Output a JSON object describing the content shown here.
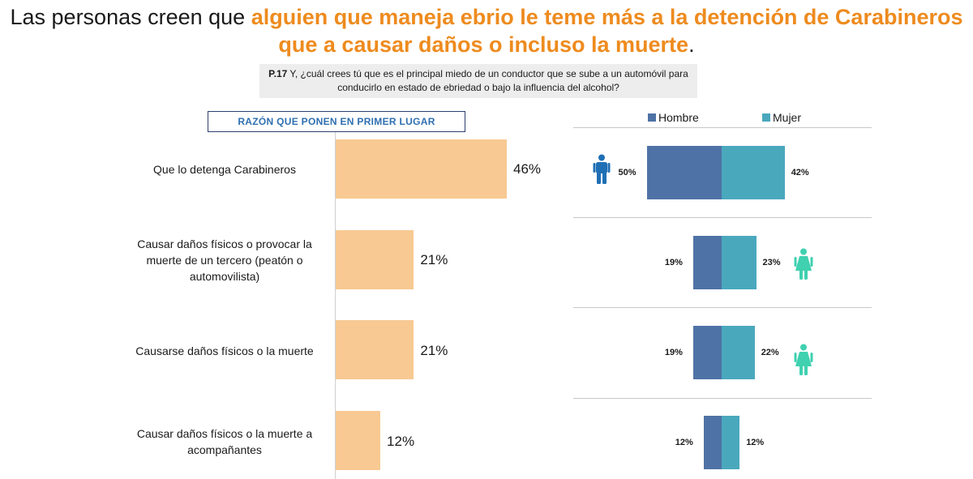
{
  "title": {
    "part1": "Las personas creen que ",
    "highlight": "alguien que maneja ebrio le teme más a la detención de Carabineros que a causar daños o incluso la muerte",
    "end": "."
  },
  "question": {
    "number": "P.17",
    "text": " Y, ¿cuál crees tú que es el principal miedo de un conductor que se sube a un automóvil para conducirlo en estado de ebriedad o bajo la influencia del alcohol?"
  },
  "razon_label": "RAZÓN QUE PONEN EN PRIMER LUGAR",
  "legend": {
    "hombre": "Hombre",
    "mujer": "Mujer"
  },
  "colors": {
    "total": "#f8c992",
    "hombre": "#4f72a6",
    "mujer": "#4aa8bd",
    "accent": "#ee8b1e",
    "male_icon": "#1f6fb5",
    "female_icon": "#3fd1b0"
  },
  "chart_data": [
    {
      "type": "bar",
      "orientation": "horizontal",
      "categories": [
        "Que lo detenga Carabineros",
        "Causar daños físicos o provocar la muerte de un tercero (peatón o automovilista)",
        "Causarse daños físicos o la muerte",
        "Causar daños físicos o la muerte a acompañantes"
      ],
      "values": [
        46,
        21,
        21,
        12
      ],
      "labels": [
        "46%",
        "21%",
        "21%",
        "12%"
      ],
      "xlim": [
        0,
        100
      ]
    },
    {
      "type": "bar",
      "orientation": "horizontal",
      "stacked": true,
      "categories": [
        "Que lo detenga Carabineros",
        "Causar daños físicos o provocar la muerte de un tercero (peatón o automovilista)",
        "Causarse daños físicos o la muerte",
        "Causar daños físicos o la muerte a acompañantes"
      ],
      "series": [
        {
          "name": "Hombre",
          "values": [
            50,
            19,
            19,
            12
          ],
          "labels": [
            "50%",
            "19%",
            "19%",
            "12%"
          ]
        },
        {
          "name": "Mujer",
          "values": [
            42,
            23,
            22,
            12
          ],
          "labels": [
            "42%",
            "23%",
            "22%",
            "12%"
          ]
        }
      ],
      "icons": [
        "male-icon",
        "female-icon",
        "female-icon",
        "none"
      ]
    }
  ]
}
